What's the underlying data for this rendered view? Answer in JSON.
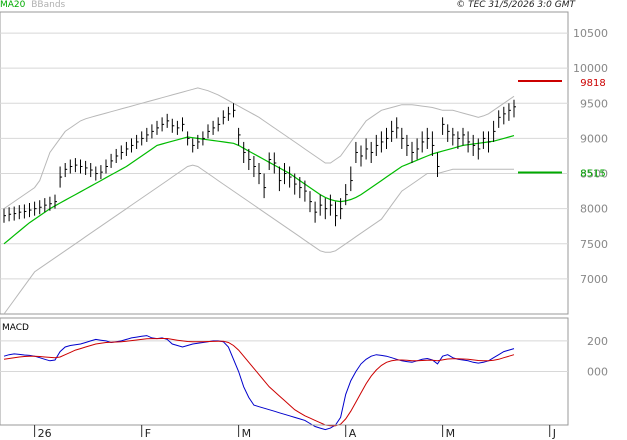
{
  "legend": {
    "ma_label": "MA20",
    "bb_label": "BBands"
  },
  "copyright": "© TEC 31/5/2026 3:0 GMT",
  "colors": {
    "price": "#000000",
    "ma": "#00bb00",
    "bbands": "#b8b8b8",
    "resistance": "#cc0000",
    "support": "#00aa00",
    "macd": "#0000cc",
    "signal": "#cc0000",
    "grid": "#d8d8d8"
  },
  "chart_data": [
    {
      "type": "ohlc",
      "title": "",
      "ylim": [
        6500,
        10800
      ],
      "yticks": [
        7000,
        7500,
        8000,
        8500,
        9000,
        9500,
        10000,
        10500
      ],
      "ytick_labels": [
        "7000",
        "7500",
        "8000",
        "8500",
        "9000",
        "9500",
        "10000",
        "10500"
      ],
      "x_labels": [
        "26",
        "F",
        "M",
        "A",
        "M",
        "J"
      ],
      "x_label_index": [
        6,
        27,
        46,
        67,
        86,
        107
      ],
      "levels": [
        {
          "name": "resistance",
          "value": 9818,
          "label": "9818"
        },
        {
          "name": "support",
          "value": 8515,
          "label": "8515"
        }
      ],
      "close": [
        7900,
        7920,
        7930,
        7950,
        7960,
        7980,
        8000,
        8020,
        8050,
        8070,
        8100,
        8450,
        8560,
        8600,
        8620,
        8600,
        8580,
        8550,
        8500,
        8520,
        8600,
        8680,
        8750,
        8800,
        8850,
        8900,
        8950,
        9000,
        9050,
        9100,
        9150,
        9200,
        9250,
        9180,
        9150,
        9200,
        9000,
        8900,
        8950,
        9000,
        9100,
        9150,
        9200,
        9300,
        9350,
        9400,
        9050,
        8800,
        8700,
        8600,
        8500,
        8300,
        8700,
        8650,
        8400,
        8500,
        8450,
        8350,
        8300,
        8250,
        8100,
        7950,
        8050,
        8000,
        8050,
        7900,
        8000,
        8200,
        8400,
        8800,
        8750,
        8850,
        8800,
        8900,
        8950,
        9000,
        9100,
        9150,
        9000,
        8900,
        8800,
        8850,
        8950,
        9000,
        8900,
        8600,
        9200,
        9100,
        9050,
        9000,
        9050,
        8950,
        8900,
        8850,
        9000,
        8950,
        9100,
        9300,
        9350,
        9400,
        9450
      ],
      "high": [
        8000,
        8020,
        8030,
        8050,
        8060,
        8080,
        8100,
        8120,
        8150,
        8170,
        8200,
        8600,
        8650,
        8700,
        8720,
        8700,
        8680,
        8650,
        8600,
        8620,
        8700,
        8780,
        8850,
        8900,
        8950,
        9000,
        9050,
        9100,
        9150,
        9200,
        9250,
        9300,
        9350,
        9280,
        9250,
        9300,
        9100,
        9000,
        9050,
        9100,
        9200,
        9250,
        9300,
        9400,
        9450,
        9500,
        9150,
        8950,
        8850,
        8750,
        8650,
        8500,
        8800,
        8800,
        8600,
        8650,
        8600,
        8500,
        8450,
        8400,
        8250,
        8100,
        8200,
        8150,
        8200,
        8100,
        8150,
        8350,
        8600,
        8950,
        8900,
        9000,
        8950,
        9050,
        9100,
        9150,
        9250,
        9300,
        9150,
        9050,
        8950,
        9000,
        9100,
        9150,
        9100,
        8800,
        9300,
        9200,
        9150,
        9100,
        9150,
        9100,
        9050,
        9000,
        9100,
        9100,
        9250,
        9400,
        9450,
        9500,
        9550
      ],
      "low": [
        7800,
        7820,
        7830,
        7850,
        7860,
        7880,
        7900,
        7920,
        7950,
        7970,
        8000,
        8300,
        8450,
        8500,
        8520,
        8500,
        8480,
        8450,
        8400,
        8420,
        8500,
        8580,
        8650,
        8700,
        8750,
        8800,
        8850,
        8900,
        8950,
        9000,
        9050,
        9100,
        9150,
        9080,
        9050,
        9100,
        8900,
        8800,
        8850,
        8900,
        9000,
        9050,
        9100,
        9200,
        9250,
        9300,
        8900,
        8650,
        8550,
        8450,
        8350,
        8150,
        8550,
        8500,
        8250,
        8350,
        8300,
        8200,
        8150,
        8100,
        7950,
        7800,
        7900,
        7850,
        7900,
        7750,
        7850,
        8050,
        8250,
        8650,
        8600,
        8700,
        8650,
        8750,
        8800,
        8850,
        8950,
        9000,
        8850,
        8750,
        8650,
        8700,
        8800,
        8850,
        8750,
        8450,
        9050,
        8950,
        8900,
        8850,
        8900,
        8800,
        8750,
        8700,
        8850,
        8800,
        8950,
        9150,
        9200,
        9250,
        9300
      ],
      "ma20": [
        7500,
        7560,
        7620,
        7680,
        7740,
        7800,
        7850,
        7900,
        7950,
        8000,
        8040,
        8080,
        8120,
        8160,
        8200,
        8240,
        8280,
        8320,
        8360,
        8400,
        8440,
        8480,
        8520,
        8560,
        8600,
        8650,
        8700,
        8750,
        8800,
        8850,
        8900,
        8920,
        8940,
        8960,
        8980,
        9000,
        9020,
        9010,
        9000,
        8990,
        8980,
        8970,
        8960,
        8950,
        8940,
        8930,
        8900,
        8860,
        8820,
        8780,
        8740,
        8700,
        8660,
        8620,
        8580,
        8540,
        8500,
        8450,
        8400,
        8350,
        8300,
        8250,
        8200,
        8160,
        8130,
        8110,
        8100,
        8110,
        8130,
        8160,
        8200,
        8250,
        8300,
        8350,
        8400,
        8450,
        8500,
        8550,
        8600,
        8630,
        8660,
        8690,
        8720,
        8750,
        8780,
        8800,
        8820,
        8840,
        8860,
        8880,
        8900,
        8910,
        8920,
        8930,
        8940,
        8950,
        8960,
        8980,
        9000,
        9020,
        9040
      ],
      "bb_upper": [
        8000,
        8050,
        8100,
        8150,
        8200,
        8250,
        8300,
        8400,
        8600,
        8800,
        8900,
        9000,
        9100,
        9150,
        9200,
        9250,
        9280,
        9300,
        9320,
        9340,
        9360,
        9380,
        9400,
        9420,
        9440,
        9460,
        9480,
        9500,
        9520,
        9540,
        9560,
        9580,
        9600,
        9620,
        9640,
        9660,
        9680,
        9700,
        9720,
        9700,
        9680,
        9650,
        9620,
        9580,
        9540,
        9500,
        9460,
        9420,
        9380,
        9340,
        9300,
        9250,
        9200,
        9150,
        9100,
        9050,
        9000,
        8950,
        8900,
        8850,
        8800,
        8750,
        8700,
        8650,
        8650,
        8700,
        8750,
        8850,
        8950,
        9050,
        9150,
        9250,
        9300,
        9350,
        9400,
        9420,
        9440,
        9460,
        9480,
        9480,
        9480,
        9470,
        9460,
        9450,
        9440,
        9420,
        9400,
        9400,
        9400,
        9380,
        9360,
        9340,
        9320,
        9300,
        9320,
        9350,
        9400,
        9450,
        9500,
        9550,
        9600
      ],
      "bb_lower": [
        6500,
        6600,
        6700,
        6800,
        6900,
        7000,
        7100,
        7150,
        7200,
        7250,
        7300,
        7350,
        7400,
        7450,
        7500,
        7550,
        7600,
        7650,
        7700,
        7750,
        7800,
        7850,
        7900,
        7950,
        8000,
        8050,
        8100,
        8150,
        8200,
        8250,
        8300,
        8350,
        8400,
        8450,
        8500,
        8550,
        8600,
        8620,
        8600,
        8550,
        8500,
        8450,
        8400,
        8350,
        8300,
        8250,
        8200,
        8150,
        8100,
        8050,
        8000,
        7950,
        7900,
        7850,
        7800,
        7750,
        7700,
        7650,
        7600,
        7550,
        7500,
        7450,
        7400,
        7380,
        7380,
        7400,
        7450,
        7500,
        7550,
        7600,
        7650,
        7700,
        7750,
        7800,
        7850,
        7950,
        8050,
        8150,
        8250,
        8300,
        8350,
        8400,
        8450,
        8500,
        8500,
        8500,
        8520,
        8540,
        8560,
        8560,
        8560,
        8560,
        8560,
        8560,
        8560,
        8560,
        8560,
        8560,
        8560,
        8560,
        8560
      ]
    },
    {
      "type": "line",
      "title": "MACD",
      "ylim": [
        -350,
        350
      ],
      "yticks": [
        0,
        200
      ],
      "ytick_labels": [
        "000",
        "200"
      ],
      "series": [
        {
          "name": "",
          "values": [
            100,
            110,
            115,
            112,
            108,
            105,
            100,
            90,
            80,
            70,
            75,
            130,
            160,
            170,
            175,
            180,
            190,
            200,
            210,
            205,
            200,
            190,
            195,
            200,
            210,
            220,
            225,
            230,
            235,
            220,
            215,
            220,
            210,
            180,
            170,
            160,
            170,
            180,
            185,
            190,
            195,
            200,
            200,
            195,
            160,
            80,
            0,
            -100,
            -170,
            -220,
            -230,
            -240,
            -250,
            -260,
            -270,
            -280,
            -290,
            -300,
            -310,
            -320,
            -340,
            -360,
            -370,
            -380,
            -370,
            -350,
            -300,
            -150,
            -60,
            0,
            50,
            80,
            100,
            110,
            105,
            100,
            90,
            80,
            70,
            65,
            60,
            70,
            80,
            85,
            75,
            50,
            100,
            110,
            90,
            80,
            75,
            70,
            60,
            55,
            60,
            70,
            90,
            110,
            130,
            140,
            150
          ]
        },
        {
          "name": "",
          "values": [
            80,
            85,
            90,
            95,
            98,
            100,
            100,
            98,
            95,
            92,
            90,
            95,
            110,
            125,
            140,
            150,
            160,
            170,
            180,
            185,
            190,
            192,
            193,
            195,
            198,
            202,
            206,
            210,
            214,
            215,
            215,
            216,
            216,
            210,
            205,
            200,
            196,
            195,
            195,
            195,
            196,
            197,
            198,
            198,
            190,
            170,
            140,
            100,
            60,
            20,
            -20,
            -60,
            -100,
            -130,
            -160,
            -190,
            -220,
            -250,
            -270,
            -290,
            -305,
            -320,
            -335,
            -350,
            -355,
            -355,
            -345,
            -310,
            -260,
            -200,
            -140,
            -80,
            -30,
            10,
            40,
            60,
            70,
            75,
            75,
            73,
            70,
            70,
            72,
            74,
            74,
            70,
            76,
            82,
            84,
            84,
            82,
            80,
            76,
            72,
            70,
            70,
            74,
            80,
            90,
            100,
            110
          ]
        }
      ]
    }
  ]
}
